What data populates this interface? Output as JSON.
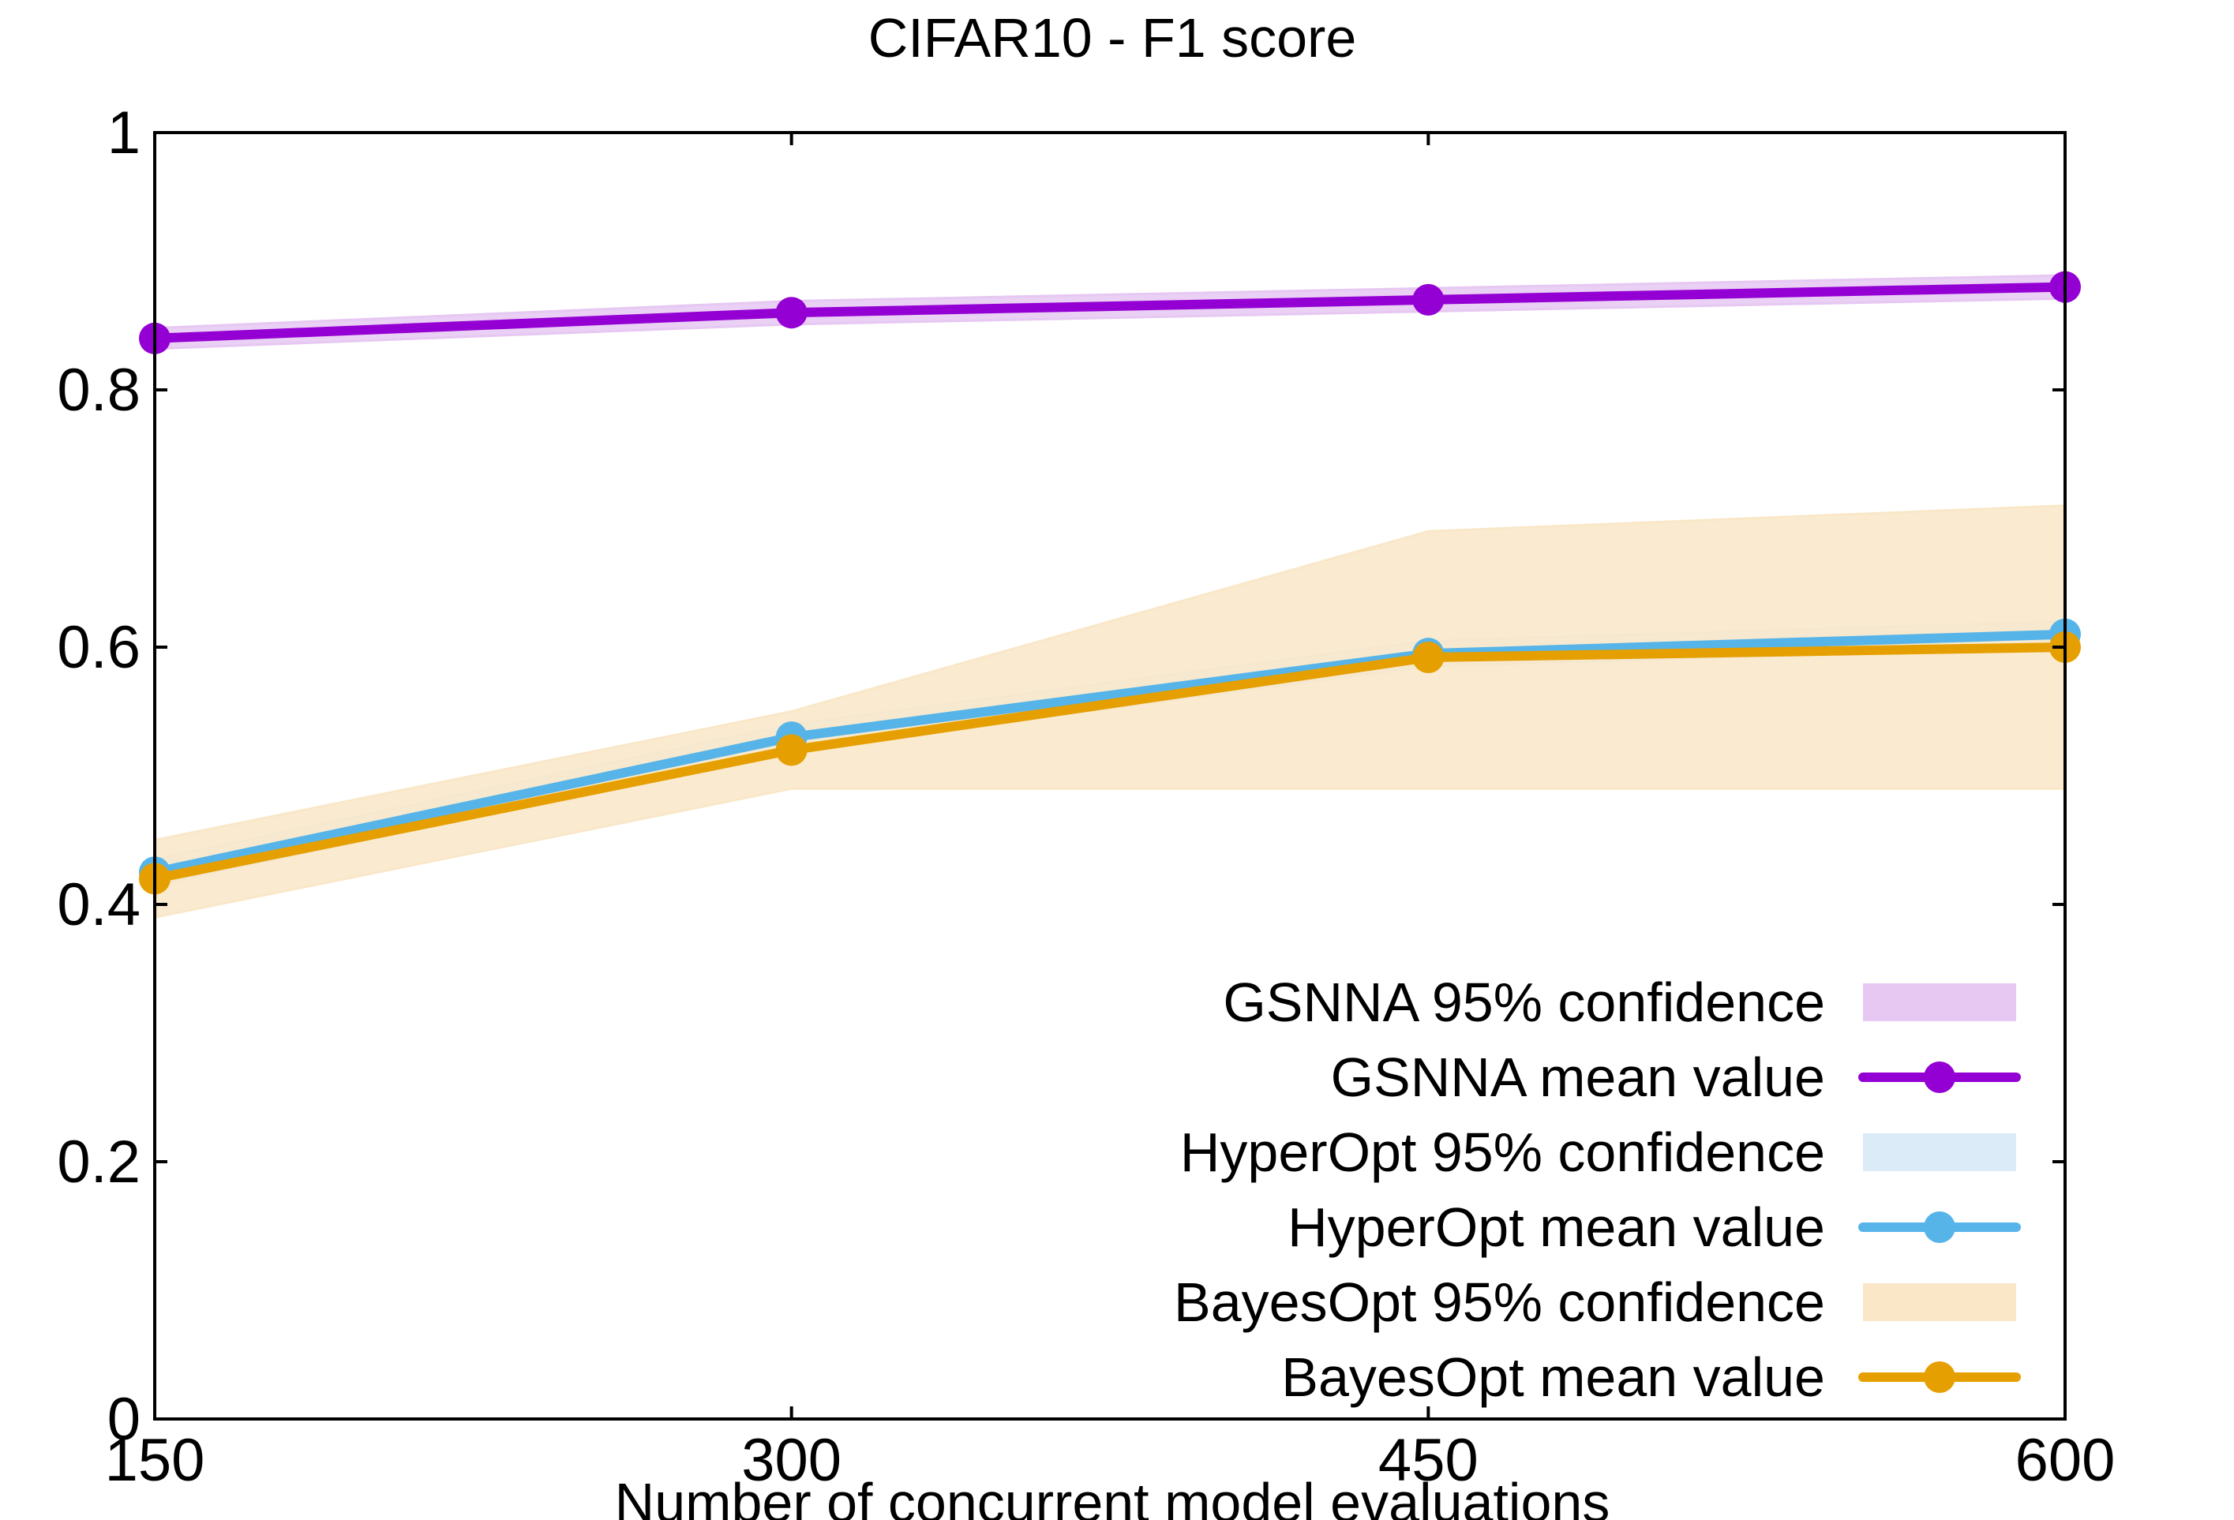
{
  "chart_data": {
    "type": "line",
    "title": "CIFAR10 - F1 score",
    "xlabel": "Number of concurrent model evaluations",
    "ylabel": "",
    "x": [
      150,
      300,
      450,
      600
    ],
    "xlim": [
      150,
      600
    ],
    "ylim": [
      0,
      1
    ],
    "xticks": [
      "150",
      "300",
      "450",
      "600"
    ],
    "yticks": [
      "0",
      "0.2",
      "0.4",
      "0.6",
      "0.8",
      "1"
    ],
    "ytick_values": [
      0,
      0.2,
      0.4,
      0.6,
      0.8,
      1
    ],
    "grid": false,
    "legend_position": "bottom-right",
    "series": [
      {
        "name": "GSNNA",
        "values": [
          0.84,
          0.86,
          0.87,
          0.88
        ],
        "ci_lower": [
          0.832,
          0.851,
          0.861,
          0.871
        ],
        "ci_upper": [
          0.848,
          0.869,
          0.879,
          0.889
        ],
        "line_color": "#9400d3",
        "band_color": "#e6c8f2",
        "ci_label": "GSNNA 95% confidence",
        "mean_label": "GSNNA mean value"
      },
      {
        "name": "HyperOpt",
        "values": [
          0.425,
          0.53,
          0.595,
          0.61
        ],
        "ci_lower": [
          0.415,
          0.52,
          0.585,
          0.6
        ],
        "ci_upper": [
          0.435,
          0.54,
          0.605,
          0.62
        ],
        "line_color": "#56b4e9",
        "band_color": "#dcebf8",
        "ci_label": "HyperOpt 95% confidence",
        "mean_label": "HyperOpt mean value"
      },
      {
        "name": "BayesOpt",
        "values": [
          0.42,
          0.52,
          0.592,
          0.6
        ],
        "ci_lower": [
          0.39,
          0.49,
          0.49,
          0.49
        ],
        "ci_upper": [
          0.45,
          0.55,
          0.69,
          0.71
        ],
        "line_color": "#e69f00",
        "band_color": "#f9e7c8",
        "ci_label": "BayesOpt 95% confidence",
        "mean_label": "BayesOpt mean value"
      }
    ]
  }
}
